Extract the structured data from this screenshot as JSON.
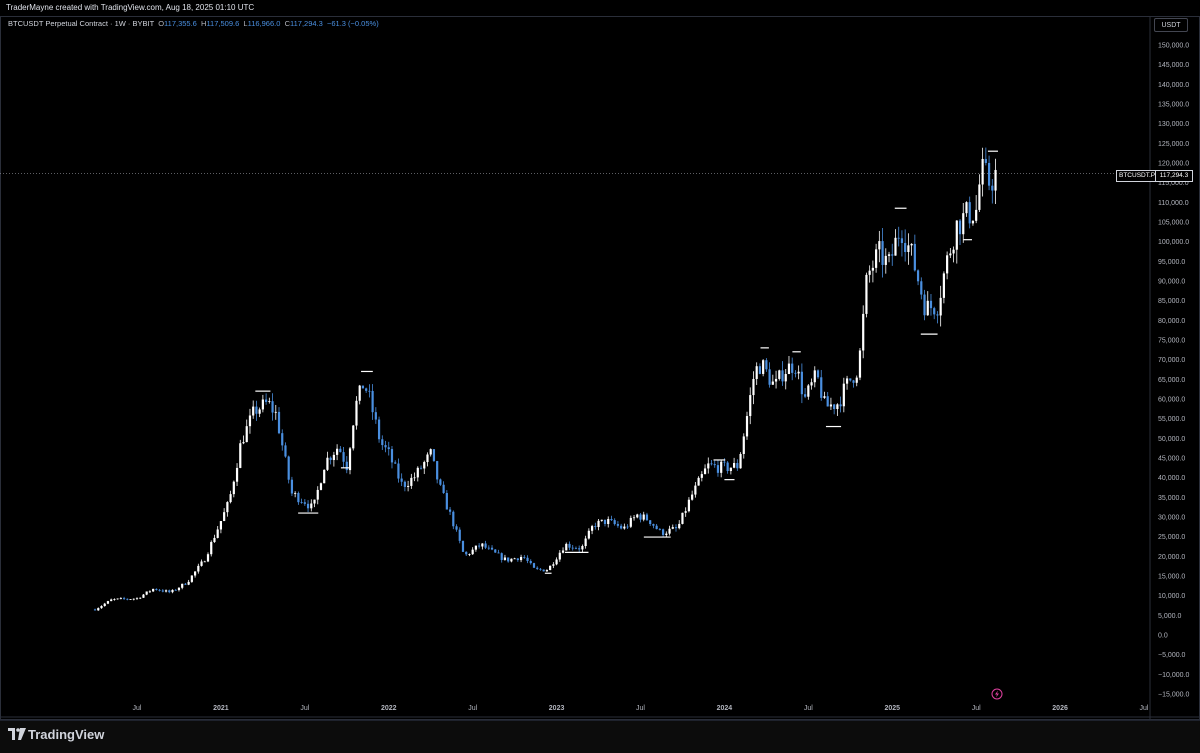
{
  "header": {
    "creator_line": "TraderMayne created with TradingView.com, Aug 18, 2025 01:10 UTC"
  },
  "legend": {
    "symbol": "BTCUSDT Perpetual Contract · 1W · BYBIT",
    "open_k": "O",
    "open": "117,355.6",
    "high_k": "H",
    "high": "117,509.6",
    "low_k": "L",
    "low": "116,966.0",
    "close_k": "C",
    "close": "117,294.3",
    "change": "−61.3 (−0.05%)"
  },
  "currency_button": "USDT",
  "price_label": {
    "name": "BTCUSDT.P",
    "value": "117,294.3"
  },
  "footer": {
    "brand": "TradingView"
  },
  "colors": {
    "up": "#ffffff",
    "down": "#4a8fe0",
    "background": "#000000",
    "grid": "#2a2e39"
  },
  "chart_data": {
    "type": "candlestick",
    "y_ticks": [
      "150,000.0",
      "145,000.0",
      "140,000.0",
      "135,000.0",
      "130,000.0",
      "125,000.0",
      "120,000.0",
      "115,000.0",
      "110,000.0",
      "105,000.0",
      "100,000.0",
      "95,000.0",
      "90,000.0",
      "85,000.0",
      "80,000.0",
      "75,000.0",
      "70,000.0",
      "65,000.0",
      "60,000.0",
      "55,000.0",
      "50,000.0",
      "45,000.0",
      "40,000.0",
      "35,000.0",
      "30,000.0",
      "25,000.0",
      "20,000.0",
      "15,000.0",
      "10,000.0",
      "5,000.0",
      "0.0",
      "−5,000.0",
      "−10,000.0",
      "−15,000.0"
    ],
    "y_tick_values": [
      150000,
      145000,
      140000,
      135000,
      130000,
      125000,
      120000,
      115000,
      110000,
      105000,
      100000,
      95000,
      90000,
      85000,
      80000,
      75000,
      70000,
      65000,
      60000,
      55000,
      50000,
      45000,
      40000,
      35000,
      30000,
      25000,
      20000,
      15000,
      10000,
      5000,
      0,
      -5000,
      -10000,
      -15000
    ],
    "ylim": [
      -15000,
      150000
    ],
    "x_ticks": [
      {
        "label": "Jul",
        "t": 2020.5
      },
      {
        "label": "2021",
        "t": 2021.0
      },
      {
        "label": "Jul",
        "t": 2021.5
      },
      {
        "label": "2022",
        "t": 2022.0
      },
      {
        "label": "Jul",
        "t": 2022.5
      },
      {
        "label": "2023",
        "t": 2023.0
      },
      {
        "label": "Jul",
        "t": 2023.5
      },
      {
        "label": "2024",
        "t": 2024.0
      },
      {
        "label": "Jul",
        "t": 2024.5
      },
      {
        "label": "2025",
        "t": 2025.0
      },
      {
        "label": "Jul",
        "t": 2025.5
      },
      {
        "label": "2026",
        "t": 2026.0
      },
      {
        "label": "Jul",
        "t": 2026.5
      }
    ],
    "xlim": [
      2020.1,
      2026.5
    ],
    "last_price": 117294.3,
    "path": [
      [
        2020.25,
        6500
      ],
      [
        2020.35,
        9000
      ],
      [
        2020.5,
        9300
      ],
      [
        2020.6,
        11800
      ],
      [
        2020.7,
        10800
      ],
      [
        2020.8,
        13500
      ],
      [
        2020.9,
        19000
      ],
      [
        2021.0,
        29000
      ],
      [
        2021.05,
        34000
      ],
      [
        2021.12,
        49000
      ],
      [
        2021.2,
        57000
      ],
      [
        2021.28,
        59000
      ],
      [
        2021.33,
        56000
      ],
      [
        2021.38,
        45000
      ],
      [
        2021.42,
        36000
      ],
      [
        2021.5,
        34000
      ],
      [
        2021.55,
        32000
      ],
      [
        2021.62,
        44000
      ],
      [
        2021.7,
        48000
      ],
      [
        2021.75,
        43000
      ],
      [
        2021.8,
        58000
      ],
      [
        2021.85,
        64000
      ],
      [
        2021.88,
        61000
      ],
      [
        2021.95,
        49000
      ],
      [
        2022.0,
        46000
      ],
      [
        2022.08,
        38000
      ],
      [
        2022.15,
        40000
      ],
      [
        2022.25,
        46000
      ],
      [
        2022.3,
        38000
      ],
      [
        2022.38,
        29000
      ],
      [
        2022.45,
        20000
      ],
      [
        2022.55,
        23000
      ],
      [
        2022.6,
        21500
      ],
      [
        2022.7,
        19000
      ],
      [
        2022.8,
        20000
      ],
      [
        2022.87,
        16500
      ],
      [
        2022.95,
        16700
      ],
      [
        2023.05,
        23000
      ],
      [
        2023.15,
        22000
      ],
      [
        2023.22,
        28000
      ],
      [
        2023.3,
        29000
      ],
      [
        2023.4,
        27000
      ],
      [
        2023.48,
        30500
      ],
      [
        2023.55,
        29300
      ],
      [
        2023.62,
        26000
      ],
      [
        2023.72,
        27000
      ],
      [
        2023.8,
        35000
      ],
      [
        2023.9,
        43000
      ],
      [
        2024.0,
        42500
      ],
      [
        2024.08,
        43000
      ],
      [
        2024.12,
        52000
      ],
      [
        2024.18,
        67000
      ],
      [
        2024.22,
        69000
      ],
      [
        2024.3,
        63000
      ],
      [
        2024.35,
        67000
      ],
      [
        2024.42,
        69000
      ],
      [
        2024.48,
        60000
      ],
      [
        2024.55,
        66000
      ],
      [
        2024.6,
        58000
      ],
      [
        2024.68,
        59000
      ],
      [
        2024.72,
        63000
      ],
      [
        2024.8,
        68000
      ],
      [
        2024.85,
        91000
      ],
      [
        2024.92,
        97000
      ],
      [
        2024.98,
        94000
      ],
      [
        2025.05,
        104000
      ],
      [
        2025.12,
        96000
      ],
      [
        2025.2,
        83000
      ],
      [
        2025.27,
        84000
      ],
      [
        2025.32,
        94000
      ],
      [
        2025.38,
        104000
      ],
      [
        2025.45,
        107000
      ],
      [
        2025.5,
        108000
      ],
      [
        2025.53,
        118000
      ],
      [
        2025.58,
        115000
      ],
      [
        2025.62,
        117294
      ]
    ],
    "markers": [
      {
        "t": 2021.25,
        "y": 62000,
        "w": 0.09
      },
      {
        "t": 2021.52,
        "y": 31000,
        "w": 0.12
      },
      {
        "t": 2021.74,
        "y": 42500,
        "w": 0.05
      },
      {
        "t": 2021.87,
        "y": 67000,
        "w": 0.07
      },
      {
        "t": 2022.95,
        "y": 15700,
        "w": 0.04
      },
      {
        "t": 2023.12,
        "y": 21000,
        "w": 0.14
      },
      {
        "t": 2023.6,
        "y": 24900,
        "w": 0.16
      },
      {
        "t": 2023.97,
        "y": 44500,
        "w": 0.07
      },
      {
        "t": 2024.03,
        "y": 39500,
        "w": 0.06
      },
      {
        "t": 2024.24,
        "y": 73000,
        "w": 0.05
      },
      {
        "t": 2024.43,
        "y": 72000,
        "w": 0.05
      },
      {
        "t": 2024.65,
        "y": 53000,
        "w": 0.09
      },
      {
        "t": 2025.05,
        "y": 108500,
        "w": 0.07
      },
      {
        "t": 2025.22,
        "y": 76500,
        "w": 0.1
      },
      {
        "t": 2025.45,
        "y": 100500,
        "w": 0.05
      },
      {
        "t": 2025.6,
        "y": 123000,
        "w": 0.06
      }
    ]
  }
}
